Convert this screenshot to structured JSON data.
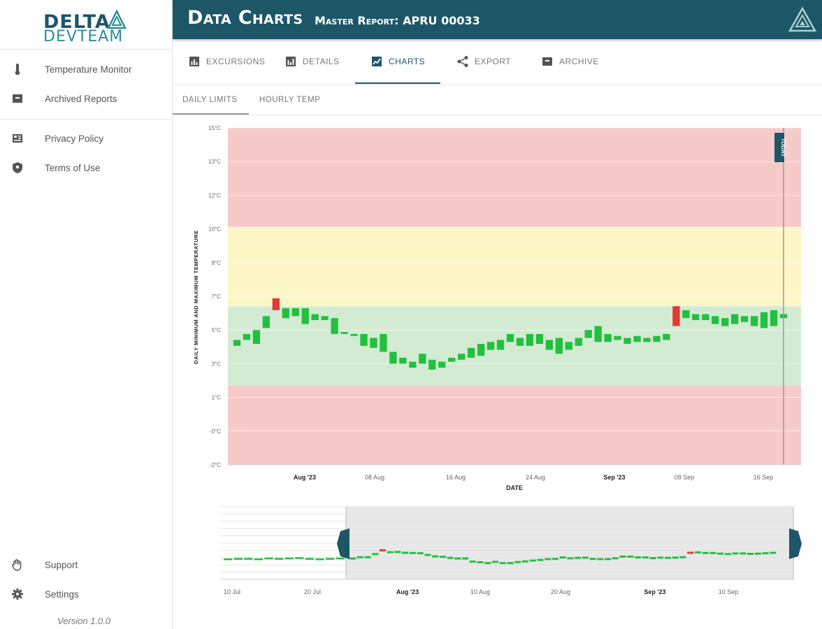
{
  "brand": {
    "line1": "DELTA",
    "line2": "DEVTEAM"
  },
  "sidebar": {
    "items": [
      {
        "label": "Temperature Monitor",
        "icon": "thermometer-icon"
      },
      {
        "label": "Archived Reports",
        "icon": "archive-box-icon"
      },
      {
        "label": "Privacy Policy",
        "icon": "document-icon"
      },
      {
        "label": "Terms of Use",
        "icon": "shield-icon"
      }
    ],
    "bottom_items": [
      {
        "label": "Support",
        "icon": "hand-icon"
      },
      {
        "label": "Settings",
        "icon": "gear-icon"
      }
    ],
    "version": "Version 1.0.0"
  },
  "header": {
    "title": "Data Charts",
    "subtitle": "Master Report: APRU 00033",
    "background": "#1d5667"
  },
  "tabs": [
    {
      "label": "EXCURSIONS",
      "icon": "bar-chart-icon"
    },
    {
      "label": "DETAILS",
      "icon": "list-chart-icon"
    },
    {
      "label": "CHARTS",
      "icon": "line-chart-icon",
      "active": true
    },
    {
      "label": "EXPORT",
      "icon": "share-icon"
    },
    {
      "label": "ARCHIVE",
      "icon": "archive-icon"
    }
  ],
  "subtabs": [
    {
      "label": "DAILY LIMITS",
      "active": true
    },
    {
      "label": "HOURLY TEMP"
    }
  ],
  "chart_data": {
    "type": "candlestick-range",
    "ylabel": "DAILY MINIMUM AND MAXIMUM TEMPERATURE",
    "xlabel": "DATE",
    "ylim": [
      -2,
      15
    ],
    "yticks": [
      "15°C",
      "13°C",
      "12°C",
      "10°C",
      "8°C",
      "7°C",
      "5°C",
      "3°C",
      "1°C",
      "-0°C",
      "-2°C"
    ],
    "xticks_main": [
      "Aug '23",
      "08 Aug",
      "16 Aug",
      "24 Aug",
      "Sep '23",
      "08 Sep",
      "16 Sep"
    ],
    "xticks_nav": [
      "10 Jul",
      "20 Jul",
      "Aug '23",
      "10 Aug",
      "20 Aug",
      "Sep '23",
      "10 Sep"
    ],
    "bands": [
      {
        "from": 10,
        "to": 15,
        "color": "#f7caca"
      },
      {
        "from": 6,
        "to": 10,
        "color": "#fdf7c8"
      },
      {
        "from": 2,
        "to": 6,
        "color": "#d3ebd3"
      },
      {
        "from": -2,
        "to": 2,
        "color": "#f7caca"
      }
    ],
    "today_label": "TODAY",
    "colors": {
      "in_range": "#22c03f",
      "excursion": "#e53935",
      "nav_handle": "#1d5667"
    },
    "series": [
      {
        "min": 4.0,
        "max": 4.3
      },
      {
        "min": 4.3,
        "max": 4.6
      },
      {
        "min": 4.1,
        "max": 4.8
      },
      {
        "min": 4.9,
        "max": 5.5
      },
      {
        "min": 5.8,
        "max": 6.4,
        "excursion": true
      },
      {
        "min": 5.4,
        "max": 5.9
      },
      {
        "min": 5.5,
        "max": 5.9
      },
      {
        "min": 5.1,
        "max": 5.9
      },
      {
        "min": 5.3,
        "max": 5.6
      },
      {
        "min": 5.3,
        "max": 5.5
      },
      {
        "min": 4.6,
        "max": 5.4
      },
      {
        "min": 4.6,
        "max": 4.7
      },
      {
        "min": 4.5,
        "max": 4.6
      },
      {
        "min": 4.0,
        "max": 4.6
      },
      {
        "min": 3.9,
        "max": 4.4
      },
      {
        "min": 3.7,
        "max": 4.6
      },
      {
        "min": 3.1,
        "max": 3.7
      },
      {
        "min": 3.1,
        "max": 3.4
      },
      {
        "min": 2.9,
        "max": 3.2
      },
      {
        "min": 3.1,
        "max": 3.6
      },
      {
        "min": 2.8,
        "max": 3.3
      },
      {
        "min": 2.9,
        "max": 3.2
      },
      {
        "min": 3.2,
        "max": 3.4
      },
      {
        "min": 3.3,
        "max": 3.6
      },
      {
        "min": 3.4,
        "max": 3.9
      },
      {
        "min": 3.5,
        "max": 4.1
      },
      {
        "min": 3.8,
        "max": 4.2
      },
      {
        "min": 3.8,
        "max": 4.3
      },
      {
        "min": 4.2,
        "max": 4.6
      },
      {
        "min": 4.0,
        "max": 4.4
      },
      {
        "min": 4.0,
        "max": 4.6
      },
      {
        "min": 4.1,
        "max": 4.6
      },
      {
        "min": 3.8,
        "max": 4.3
      },
      {
        "min": 3.6,
        "max": 4.4
      },
      {
        "min": 3.8,
        "max": 4.2
      },
      {
        "min": 4.0,
        "max": 4.4
      },
      {
        "min": 4.4,
        "max": 4.8
      },
      {
        "min": 4.2,
        "max": 5.0
      },
      {
        "min": 4.2,
        "max": 4.6
      },
      {
        "min": 4.3,
        "max": 4.5
      },
      {
        "min": 4.1,
        "max": 4.4
      },
      {
        "min": 4.2,
        "max": 4.5
      },
      {
        "min": 4.2,
        "max": 4.4
      },
      {
        "min": 4.2,
        "max": 4.5
      },
      {
        "min": 4.3,
        "max": 4.6
      },
      {
        "min": 5.0,
        "max": 6.0,
        "excursion": true
      },
      {
        "min": 5.4,
        "max": 5.8
      },
      {
        "min": 5.3,
        "max": 5.6
      },
      {
        "min": 5.3,
        "max": 5.6
      },
      {
        "min": 5.1,
        "max": 5.5
      },
      {
        "min": 5.0,
        "max": 5.4
      },
      {
        "min": 5.1,
        "max": 5.6
      },
      {
        "min": 5.2,
        "max": 5.5
      },
      {
        "min": 5.0,
        "max": 5.5
      },
      {
        "min": 4.9,
        "max": 5.7
      },
      {
        "min": 5.0,
        "max": 5.8
      },
      {
        "min": 5.4,
        "max": 5.6
      }
    ]
  }
}
